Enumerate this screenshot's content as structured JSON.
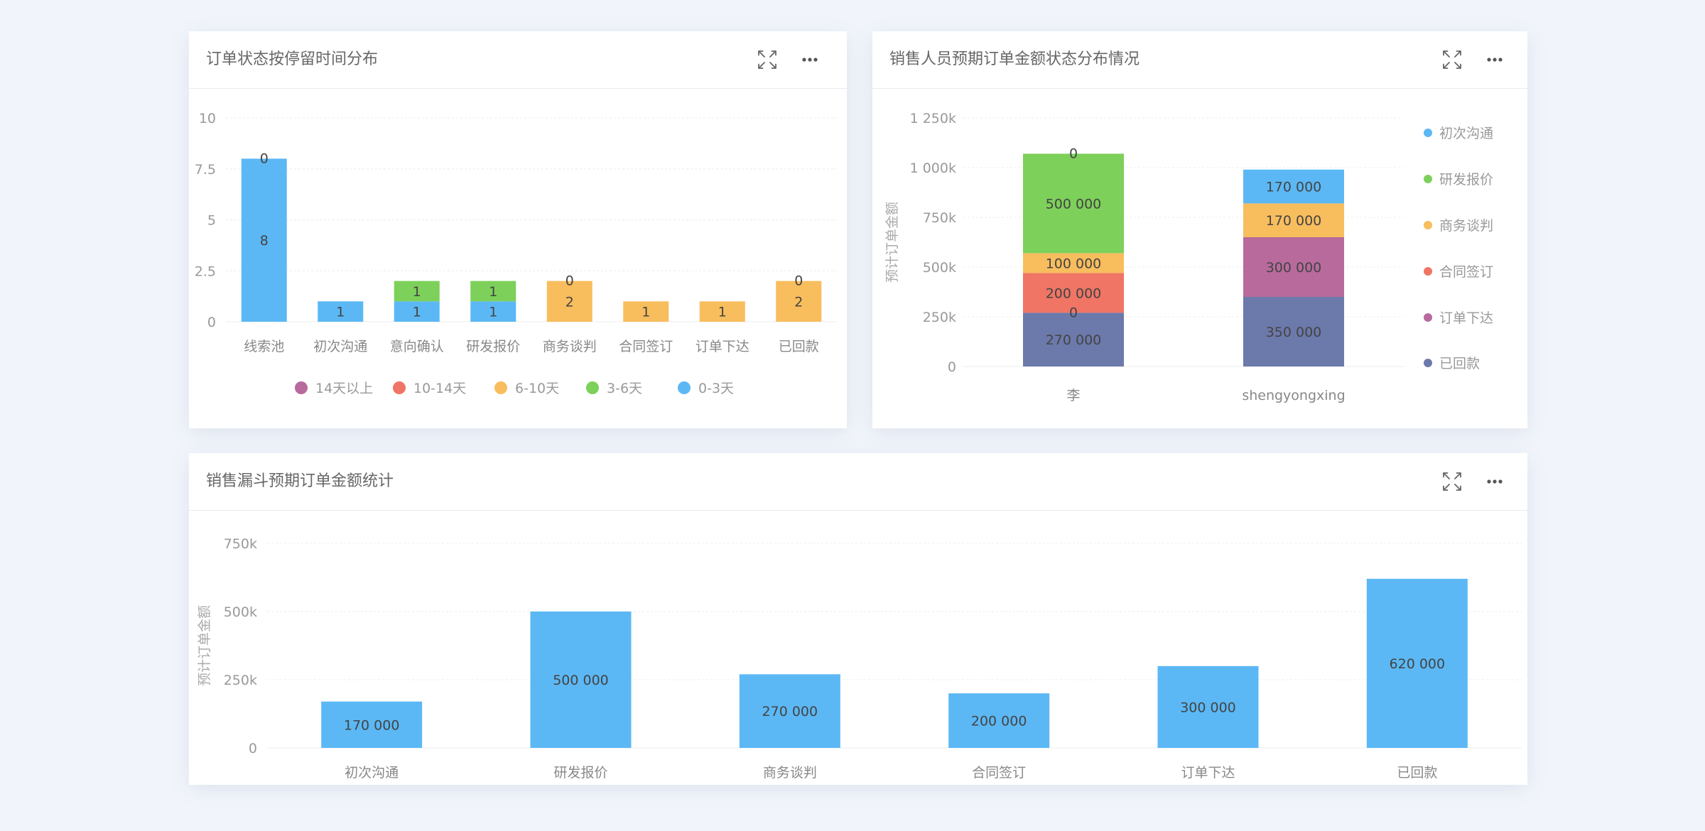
{
  "panels": [
    {
      "title": "订单状态按停留时间分布",
      "icons": [
        "expand-icon",
        "more-icon"
      ],
      "chart_data": {
        "type": "bar",
        "stacked": true,
        "categories": [
          "线索池",
          "初次沟通",
          "意向确认",
          "研发报价",
          "商务谈判",
          "合同签订",
          "订单下达",
          "已回款"
        ],
        "series": [
          {
            "name": "0-3天",
            "color": "#5bb8f5",
            "values": [
              8,
              1,
              1,
              1,
              0,
              0,
              0,
              0
            ]
          },
          {
            "name": "3-6天",
            "color": "#7dd05a",
            "values": [
              0,
              0,
              1,
              1,
              0,
              0,
              0,
              0
            ]
          },
          {
            "name": "6-10天",
            "color": "#f8bd5d",
            "values": [
              0,
              0,
              0,
              0,
              2,
              1,
              1,
              2
            ]
          },
          {
            "name": "10-14天",
            "color": "#f07565",
            "values": [
              0,
              0,
              0,
              0,
              0,
              0,
              0,
              0
            ]
          },
          {
            "name": "14天以上",
            "color": "#b86a9d",
            "values": [
              0,
              0,
              0,
              0,
              0,
              0,
              0,
              0
            ]
          }
        ],
        "data_labels": [
          {
            "category": "线索池",
            "series": "0-3天",
            "text": "8"
          },
          {
            "category": "线索池",
            "series": "0-3天",
            "text": "0",
            "top": true
          },
          {
            "category": "初次沟通",
            "series": "0-3天",
            "text": "1"
          },
          {
            "category": "意向确认",
            "series": "0-3天",
            "text": "1"
          },
          {
            "category": "意向确认",
            "series": "3-6天",
            "text": "1"
          },
          {
            "category": "研发报价",
            "series": "0-3天",
            "text": "1"
          },
          {
            "category": "研发报价",
            "series": "3-6天",
            "text": "1"
          },
          {
            "category": "商务谈判",
            "series": "6-10天",
            "text": "2"
          },
          {
            "category": "商务谈判",
            "series": "6-10天",
            "text": "0",
            "top": true
          },
          {
            "category": "合同签订",
            "series": "6-10天",
            "text": "1"
          },
          {
            "category": "订单下达",
            "series": "6-10天",
            "text": "1"
          },
          {
            "category": "已回款",
            "series": "6-10天",
            "text": "2"
          },
          {
            "category": "已回款",
            "series": "6-10天",
            "text": "0",
            "top": true
          }
        ],
        "yticks": [
          "0",
          "2.5",
          "5",
          "7.5",
          "10"
        ],
        "ytick_values": [
          0,
          2.5,
          5,
          7.5,
          10
        ],
        "ylim": [
          0,
          10
        ],
        "xlabel": "",
        "ylabel": "",
        "legend": [
          "14天以上",
          "10-14天",
          "6-10天",
          "3-6天",
          "0-3天"
        ],
        "legend_position": "bottom",
        "grid": true
      }
    },
    {
      "title": "销售人员预期订单金额状态分布情况",
      "icons": [
        "expand-icon",
        "more-icon"
      ],
      "chart_data": {
        "type": "bar",
        "stacked": true,
        "categories": [
          "李",
          "shengyongxing"
        ],
        "series": [
          {
            "name": "已回款",
            "color": "#6c79ab",
            "values": [
              270000,
              350000
            ]
          },
          {
            "name": "订单下达",
            "color": "#b86a9d",
            "values": [
              0,
              300000
            ]
          },
          {
            "name": "合同签订",
            "color": "#f07565",
            "values": [
              200000,
              0
            ]
          },
          {
            "name": "商务谈判",
            "color": "#f8bd5d",
            "values": [
              100000,
              170000
            ]
          },
          {
            "name": "研发报价",
            "color": "#7dd05a",
            "values": [
              500000,
              0
            ]
          },
          {
            "name": "初次沟通",
            "color": "#5bb8f5",
            "values": [
              0,
              170000
            ]
          }
        ],
        "data_labels": [
          {
            "category": "李",
            "series": "已回款",
            "text": "270 000"
          },
          {
            "category": "李",
            "series": "已回款",
            "text": "0",
            "top": true
          },
          {
            "category": "李",
            "series": "合同签订",
            "text": "200 000"
          },
          {
            "category": "李",
            "series": "商务谈判",
            "text": "100 000"
          },
          {
            "category": "李",
            "series": "研发报价",
            "text": "500 000"
          },
          {
            "category": "李",
            "series": "研发报价",
            "text": "0",
            "top": true
          },
          {
            "category": "shengyongxing",
            "series": "已回款",
            "text": "350 000"
          },
          {
            "category": "shengyongxing",
            "series": "订单下达",
            "text": "300 000"
          },
          {
            "category": "shengyongxing",
            "series": "商务谈判",
            "text": "170 000"
          },
          {
            "category": "shengyongxing",
            "series": "初次沟通",
            "text": "170 000"
          }
        ],
        "yticks": [
          "0",
          "250k",
          "500k",
          "750k",
          "1 000k",
          "1 250k"
        ],
        "ytick_values": [
          0,
          250000,
          500000,
          750000,
          1000000,
          1250000
        ],
        "ylim": [
          0,
          1250000
        ],
        "xlabel": "",
        "ylabel": "预计订单金额",
        "legend": [
          "初次沟通",
          "研发报价",
          "商务谈判",
          "合同签订",
          "订单下达",
          "已回款"
        ],
        "legend_position": "right",
        "grid": true
      }
    },
    {
      "title": "销售漏斗预期订单金额统计",
      "icons": [
        "expand-icon",
        "more-icon"
      ],
      "chart_data": {
        "type": "bar",
        "stacked": false,
        "categories": [
          "初次沟通",
          "研发报价",
          "商务谈判",
          "合同签订",
          "订单下达",
          "已回款"
        ],
        "series": [
          {
            "color": "#5bb8f5",
            "values": [
              170000,
              500000,
              270000,
              200000,
              300000,
              620000
            ]
          }
        ],
        "data_labels": [
          {
            "category": "初次沟通",
            "text": "170 000"
          },
          {
            "category": "研发报价",
            "text": "500 000"
          },
          {
            "category": "商务谈判",
            "text": "270 000"
          },
          {
            "category": "合同签订",
            "text": "200 000"
          },
          {
            "category": "订单下达",
            "text": "300 000"
          },
          {
            "category": "已回款",
            "text": "620 000"
          }
        ],
        "yticks": [
          "0",
          "250k",
          "500k",
          "750k"
        ],
        "ytick_values": [
          0,
          250000,
          500000,
          750000
        ],
        "ylim": [
          0,
          750000
        ],
        "xlabel": "",
        "ylabel": "预计订单金额",
        "legend_position": "none",
        "grid": true
      }
    }
  ]
}
